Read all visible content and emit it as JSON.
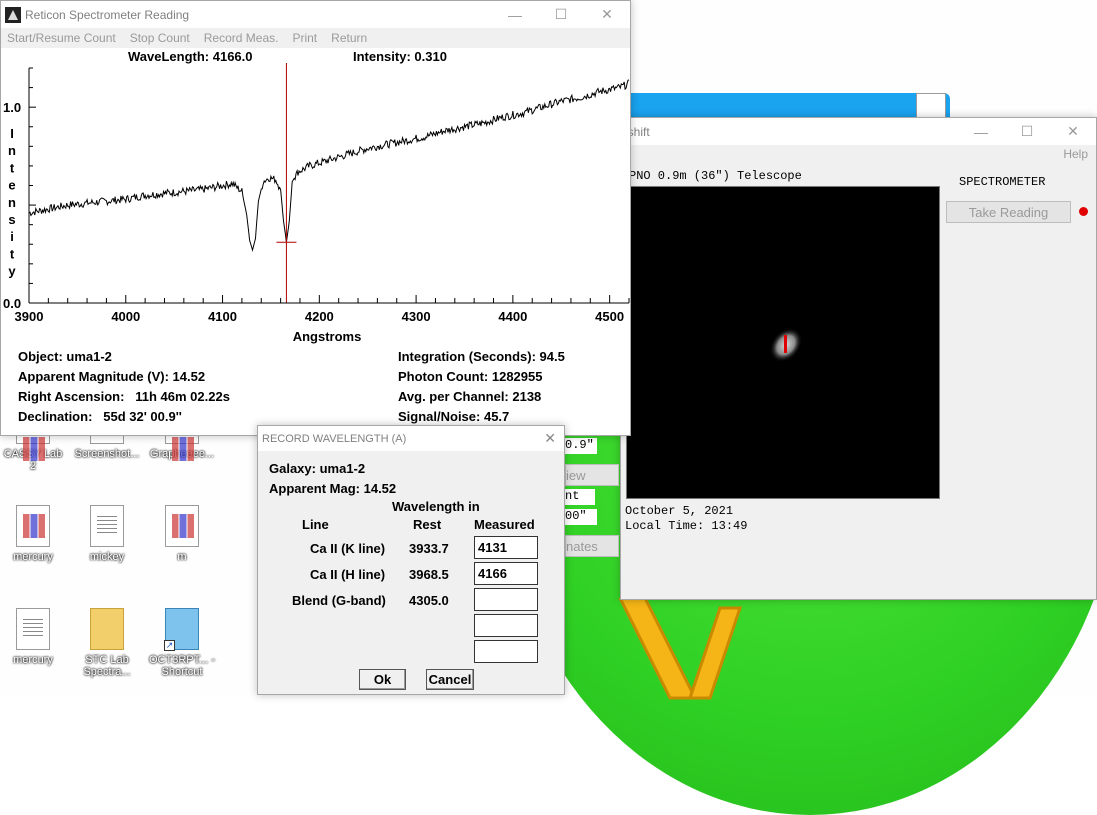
{
  "spectrometer": {
    "title": "Reticon Spectrometer Reading",
    "menu": [
      "Start/Resume Count",
      "Stop Count",
      "Record Meas.",
      "Print",
      "Return"
    ],
    "wavelength_label": "WaveLength: 4166.0",
    "intensity_label": "Intensity: 0.310",
    "y_axis_label": [
      "I",
      "n",
      "t",
      "e",
      "n",
      "s",
      "i",
      "t",
      "y"
    ],
    "info_left": [
      "Object: uma1-2",
      "Apparent Magnitude (V): 14.52",
      "Right Ascension:   11h 46m 02.22s",
      "Declination:   55d 32' 00.9''"
    ],
    "info_right": [
      "Integration (Seconds): 94.5",
      "Photon Count: 1282955",
      "Avg. per Channel: 2138",
      "Signal/Noise: 45.7"
    ]
  },
  "chart_data": {
    "type": "line",
    "xlabel": "Angstroms",
    "ylabel": "Intensity",
    "xlim": [
      3900,
      4520
    ],
    "ylim": [
      0.0,
      1.2
    ],
    "x_ticks": [
      3900,
      4000,
      4100,
      4200,
      4300,
      4400,
      4500
    ],
    "y_tick_labels": [
      "1.0",
      "0.0"
    ],
    "cursor_x": 4166.0,
    "cursor_y": 0.31,
    "line_color": "#000000",
    "cursor_color": "#b00000",
    "series": [
      {
        "x": [
          3900,
          3920,
          3940,
          3960,
          3980,
          4000,
          4020,
          4040,
          4060,
          4080,
          4100,
          4110,
          4120,
          4125,
          4128,
          4131,
          4134,
          4137,
          4142,
          4148,
          4155,
          4160,
          4163,
          4166,
          4169,
          4172,
          4178,
          4190,
          4210,
          4230,
          4250,
          4270,
          4290,
          4310,
          4330,
          4350,
          4370,
          4390,
          4410,
          4430,
          4450,
          4470,
          4490,
          4510,
          4520
        ],
        "y": [
          0.46,
          0.48,
          0.5,
          0.51,
          0.52,
          0.53,
          0.55,
          0.56,
          0.57,
          0.58,
          0.6,
          0.61,
          0.57,
          0.45,
          0.32,
          0.27,
          0.33,
          0.52,
          0.62,
          0.64,
          0.63,
          0.58,
          0.42,
          0.31,
          0.42,
          0.62,
          0.67,
          0.7,
          0.73,
          0.76,
          0.79,
          0.81,
          0.83,
          0.85,
          0.88,
          0.9,
          0.92,
          0.95,
          0.97,
          1.0,
          1.03,
          1.05,
          1.08,
          1.1,
          1.12
        ]
      }
    ]
  },
  "telescope": {
    "title_fragment": "lshift",
    "help": "Help",
    "telescope_label": "PNO 0.9m (36\") Telescope",
    "spectrometer_label": "SPECTROMETER",
    "take_reading": "Take Reading",
    "date": "October 5, 2021",
    "local_time": "Local Time: 13:49",
    "partial_fragments": [
      "0.9\"",
      "iew",
      "nt",
      "00\"",
      "nates"
    ],
    "status_dot_color": "#e00000"
  },
  "dialog": {
    "title": "RECORD WAVELENGTH (A)",
    "galaxy": "Galaxy: uma1-2",
    "apparent_mag": "Apparent Mag: 14.52",
    "header_wavelength": "Wavelength in",
    "header_line": "Line",
    "header_rest": "Rest",
    "header_measured": "Measured",
    "rows": [
      {
        "line": "Ca II (K line)",
        "rest": "3933.7",
        "measured": "4131"
      },
      {
        "line": "Ca II (H line)",
        "rest": "3968.5",
        "measured": "4166"
      },
      {
        "line": "Blend (G-band)",
        "rest": "4305.0",
        "measured": ""
      },
      {
        "line": "",
        "rest": "",
        "measured": ""
      },
      {
        "line": "",
        "rest": "",
        "measured": ""
      }
    ],
    "ok": "Ok",
    "cancel": "Cancel"
  },
  "desktop_icons": [
    {
      "label": "CASSY Lab 2",
      "icon": "app-icon"
    },
    {
      "label": "Screenshot...",
      "icon": "image-icon"
    },
    {
      "label": "Grapheeee...",
      "icon": "app-icon"
    },
    {
      "label": "mercury",
      "icon": "app-icon"
    },
    {
      "label": "mickey",
      "icon": "document-icon"
    },
    {
      "label": "m",
      "icon": "app-icon"
    },
    {
      "label": "mercury",
      "icon": "document-icon"
    },
    {
      "label": "STC Lab Spectra...",
      "icon": "folder-icon"
    },
    {
      "label": "OCT3RPT... - Shortcut",
      "icon": "notepad-icon"
    }
  ]
}
